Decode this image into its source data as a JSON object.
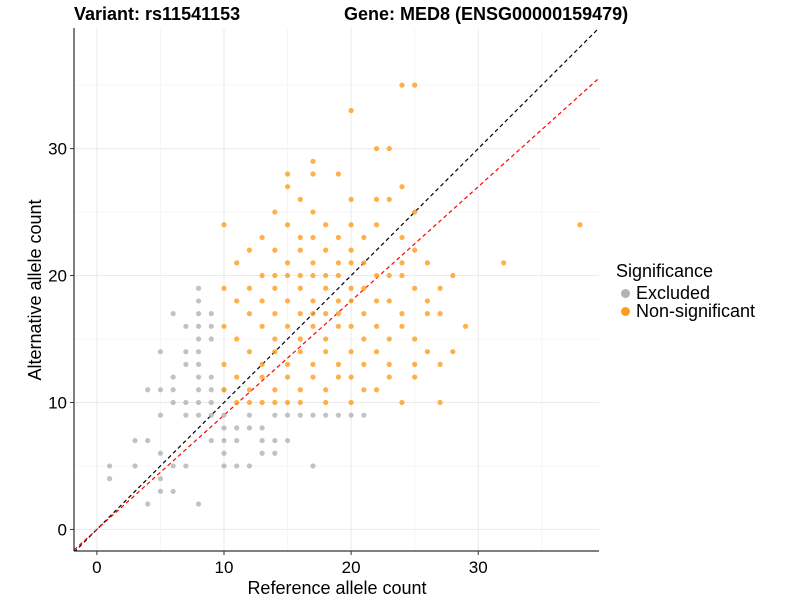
{
  "header": {
    "variant": "Variant: rs11541153",
    "gene": "Gene: MED8 (ENSG00000159479)"
  },
  "legend": {
    "title": "Significance",
    "items": [
      {
        "label": "Excluded",
        "color": "#b3b3b3"
      },
      {
        "label": "Non-significant",
        "color": "#ff9c1c"
      }
    ]
  },
  "chart_data": {
    "type": "scatter",
    "xlabel": "Reference allele count",
    "ylabel": "Alternative allele count",
    "xlim": [
      -1.8,
      39.5
    ],
    "ylim": [
      -1.7,
      39.5
    ],
    "xticks": [
      0,
      10,
      20,
      30
    ],
    "yticks": [
      0,
      10,
      20,
      30
    ],
    "grid": true,
    "lines": [
      {
        "style": "dashed",
        "color": "#000000",
        "slope": 1,
        "intercept": 0
      },
      {
        "style": "dashed",
        "color": "#ff0000",
        "slope": 0.9,
        "intercept": 0
      }
    ],
    "series": [
      {
        "name": "Excluded",
        "color": "#b3b3b3",
        "points": [
          [
            1,
            5
          ],
          [
            1,
            4
          ],
          [
            3,
            5
          ],
          [
            3,
            7
          ],
          [
            4,
            7
          ],
          [
            4,
            11
          ],
          [
            4,
            2
          ],
          [
            5,
            4
          ],
          [
            5,
            3
          ],
          [
            5,
            6
          ],
          [
            5,
            14
          ],
          [
            5,
            9
          ],
          [
            5,
            11
          ],
          [
            6,
            3
          ],
          [
            6,
            5
          ],
          [
            6,
            10
          ],
          [
            6,
            12
          ],
          [
            6,
            17
          ],
          [
            6,
            11
          ],
          [
            7,
            5
          ],
          [
            7,
            9
          ],
          [
            7,
            13
          ],
          [
            7,
            14
          ],
          [
            7,
            10
          ],
          [
            7,
            16
          ],
          [
            8,
            9
          ],
          [
            8,
            10
          ],
          [
            8,
            11
          ],
          [
            8,
            12
          ],
          [
            8,
            13
          ],
          [
            8,
            14
          ],
          [
            8,
            15
          ],
          [
            8,
            16
          ],
          [
            8,
            17
          ],
          [
            8,
            18
          ],
          [
            8,
            19
          ],
          [
            8,
            2
          ],
          [
            9,
            7
          ],
          [
            9,
            9
          ],
          [
            9,
            10
          ],
          [
            9,
            11
          ],
          [
            9,
            12
          ],
          [
            9,
            15
          ],
          [
            9,
            16
          ],
          [
            9,
            17
          ],
          [
            10,
            5
          ],
          [
            10,
            6
          ],
          [
            10,
            7
          ],
          [
            10,
            8
          ],
          [
            10,
            9
          ],
          [
            10,
            11
          ],
          [
            11,
            5
          ],
          [
            11,
            7
          ],
          [
            11,
            8
          ],
          [
            12,
            5
          ],
          [
            12,
            8
          ],
          [
            12,
            9
          ],
          [
            13,
            6
          ],
          [
            13,
            7
          ],
          [
            13,
            8
          ],
          [
            14,
            6
          ],
          [
            14,
            7
          ],
          [
            14,
            9
          ],
          [
            15,
            7
          ],
          [
            15,
            9
          ],
          [
            16,
            9
          ],
          [
            17,
            5
          ],
          [
            17,
            9
          ],
          [
            18,
            9
          ],
          [
            19,
            9
          ],
          [
            20,
            9
          ],
          [
            21,
            9
          ]
        ]
      },
      {
        "name": "Non-significant",
        "color": "#ff9c1c",
        "points": [
          [
            10,
            24
          ],
          [
            10,
            19
          ],
          [
            10,
            16
          ],
          [
            10,
            13
          ],
          [
            10,
            11
          ],
          [
            11,
            21
          ],
          [
            11,
            18
          ],
          [
            11,
            15
          ],
          [
            11,
            12
          ],
          [
            11,
            10
          ],
          [
            12,
            22
          ],
          [
            12,
            19
          ],
          [
            12,
            17
          ],
          [
            12,
            14
          ],
          [
            12,
            11
          ],
          [
            12,
            10
          ],
          [
            13,
            23
          ],
          [
            13,
            20
          ],
          [
            13,
            18
          ],
          [
            13,
            16
          ],
          [
            13,
            13
          ],
          [
            13,
            12
          ],
          [
            13,
            10
          ],
          [
            14,
            25
          ],
          [
            14,
            22
          ],
          [
            14,
            20
          ],
          [
            14,
            19
          ],
          [
            14,
            17
          ],
          [
            14,
            15
          ],
          [
            14,
            14
          ],
          [
            14,
            11
          ],
          [
            14,
            10
          ],
          [
            15,
            28
          ],
          [
            15,
            27
          ],
          [
            15,
            24
          ],
          [
            15,
            21
          ],
          [
            15,
            20
          ],
          [
            15,
            18
          ],
          [
            15,
            16
          ],
          [
            15,
            13
          ],
          [
            15,
            12
          ],
          [
            15,
            10
          ],
          [
            16,
            26
          ],
          [
            16,
            23
          ],
          [
            16,
            22
          ],
          [
            16,
            20
          ],
          [
            16,
            19
          ],
          [
            16,
            17
          ],
          [
            16,
            15
          ],
          [
            16,
            14
          ],
          [
            16,
            11
          ],
          [
            16,
            10
          ],
          [
            17,
            29
          ],
          [
            17,
            28
          ],
          [
            17,
            25
          ],
          [
            17,
            23
          ],
          [
            17,
            21
          ],
          [
            17,
            20
          ],
          [
            17,
            18
          ],
          [
            17,
            17
          ],
          [
            17,
            16
          ],
          [
            17,
            13
          ],
          [
            17,
            12
          ],
          [
            18,
            24
          ],
          [
            18,
            22
          ],
          [
            18,
            20
          ],
          [
            18,
            19
          ],
          [
            18,
            17
          ],
          [
            18,
            15
          ],
          [
            18,
            14
          ],
          [
            18,
            11
          ],
          [
            18,
            10
          ],
          [
            19,
            28
          ],
          [
            19,
            23
          ],
          [
            19,
            21
          ],
          [
            19,
            20
          ],
          [
            19,
            18
          ],
          [
            19,
            17
          ],
          [
            19,
            16
          ],
          [
            19,
            13
          ],
          [
            19,
            12
          ],
          [
            20,
            33
          ],
          [
            20,
            26
          ],
          [
            20,
            24
          ],
          [
            20,
            22
          ],
          [
            20,
            21
          ],
          [
            20,
            19
          ],
          [
            20,
            18
          ],
          [
            20,
            16
          ],
          [
            20,
            14
          ],
          [
            20,
            12
          ],
          [
            20,
            10
          ],
          [
            21,
            23
          ],
          [
            21,
            21
          ],
          [
            21,
            19
          ],
          [
            21,
            17
          ],
          [
            21,
            15
          ],
          [
            21,
            13
          ],
          [
            21,
            11
          ],
          [
            22,
            30
          ],
          [
            22,
            26
          ],
          [
            22,
            24
          ],
          [
            22,
            20
          ],
          [
            22,
            18
          ],
          [
            22,
            16
          ],
          [
            22,
            14
          ],
          [
            22,
            11
          ],
          [
            23,
            30
          ],
          [
            23,
            26
          ],
          [
            23,
            20
          ],
          [
            23,
            18
          ],
          [
            23,
            15
          ],
          [
            23,
            13
          ],
          [
            23,
            12
          ],
          [
            24,
            35
          ],
          [
            24,
            27
          ],
          [
            24,
            23
          ],
          [
            24,
            21
          ],
          [
            24,
            20
          ],
          [
            24,
            17
          ],
          [
            24,
            16
          ],
          [
            24,
            10
          ],
          [
            25,
            35
          ],
          [
            25,
            25
          ],
          [
            25,
            22
          ],
          [
            25,
            19
          ],
          [
            25,
            15
          ],
          [
            25,
            13
          ],
          [
            25,
            12
          ],
          [
            26,
            21
          ],
          [
            26,
            18
          ],
          [
            26,
            17
          ],
          [
            26,
            14
          ],
          [
            27,
            19
          ],
          [
            27,
            17
          ],
          [
            27,
            13
          ],
          [
            27,
            10
          ],
          [
            28,
            20
          ],
          [
            28,
            14
          ],
          [
            29,
            16
          ],
          [
            32,
            21
          ],
          [
            38,
            24
          ]
        ]
      }
    ]
  }
}
